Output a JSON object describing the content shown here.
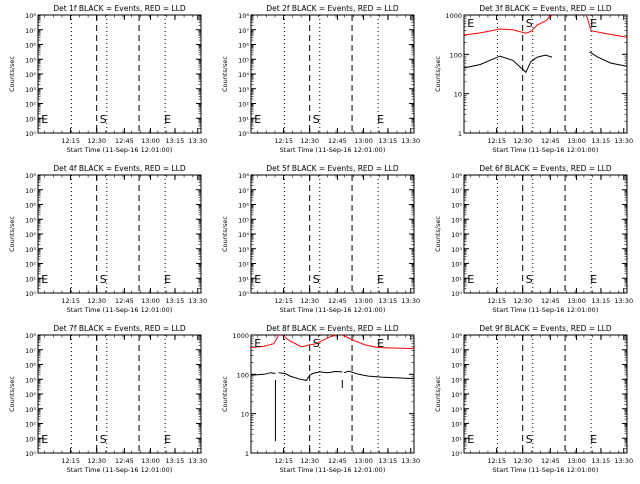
{
  "x_ticks": [
    "12:15",
    "12:30",
    "12:45",
    "13:00",
    "13:15",
    "13:30"
  ],
  "x_label": "Start Time (11-Sep-16 12:01:00)",
  "y_label": "Counts/sec",
  "marker_S": "S",
  "marker_E": "E",
  "colors": {
    "events": "#000000",
    "lld": "#ff0000",
    "axes": "#000000"
  },
  "chart_data": [
    {
      "type": "line",
      "title": "Det 1f BLACK = Events, RED = LLD",
      "y_scale": "log",
      "ylim": [
        1,
        100000000
      ],
      "y_ticks": [
        "10⁰",
        "10¹",
        "10²",
        "10³",
        "10⁴",
        "10⁵",
        "10⁶",
        "10⁷",
        "10⁸"
      ],
      "series": []
    },
    {
      "type": "line",
      "title": "Det 2f BLACK = Events, RED = LLD",
      "y_scale": "log",
      "ylim": [
        1,
        100000000
      ],
      "y_ticks": [
        "10⁰",
        "10¹",
        "10²",
        "10³",
        "10⁴",
        "10⁵",
        "10⁶",
        "10⁷",
        "10⁸"
      ],
      "series": []
    },
    {
      "type": "line",
      "title": "Det 3f BLACK = Events, RED = LLD",
      "y_scale": "log",
      "ylim": [
        1,
        1000
      ],
      "y_ticks": [
        "1",
        "10",
        "100",
        "1000"
      ],
      "series": [
        {
          "color": "red",
          "segments": [
            [
              [
                0,
                310
              ],
              [
                10,
                350
              ],
              [
                22,
                440
              ],
              [
                30,
                420
              ],
              [
                38,
                345
              ],
              [
                41,
                380
              ],
              [
                45,
                560
              ],
              [
                50,
                700
              ],
              [
                54,
                1000
              ]
            ],
            [
              [
                75,
                1000
              ],
              [
                78,
                400
              ],
              [
                88,
                330
              ],
              [
                100,
                270
              ]
            ]
          ]
        },
        {
          "color": "black",
          "segments": [
            [
              [
                0,
                45
              ],
              [
                10,
                55
              ],
              [
                22,
                90
              ],
              [
                30,
                70
              ],
              [
                38,
                35
              ],
              [
                41,
                65
              ],
              [
                45,
                85
              ],
              [
                50,
                95
              ],
              [
                54,
                85
              ]
            ],
            [
              [
                77,
                115
              ],
              [
                82,
                85
              ],
              [
                90,
                60
              ],
              [
                100,
                50
              ]
            ]
          ]
        }
      ]
    },
    {
      "type": "line",
      "title": "Det 4f BLACK = Events, RED = LLD",
      "y_scale": "log",
      "ylim": [
        1,
        100000000
      ],
      "y_ticks": [
        "10⁰",
        "10¹",
        "10²",
        "10³",
        "10⁴",
        "10⁵",
        "10⁶",
        "10⁷",
        "10⁸"
      ],
      "series": []
    },
    {
      "type": "line",
      "title": "Det 5f BLACK = Events, RED = LLD",
      "y_scale": "log",
      "ylim": [
        1,
        100000000
      ],
      "y_ticks": [
        "10⁰",
        "10¹",
        "10²",
        "10³",
        "10⁴",
        "10⁵",
        "10⁶",
        "10⁷",
        "10⁸"
      ],
      "series": []
    },
    {
      "type": "line",
      "title": "Det 6f BLACK = Events, RED = LLD",
      "y_scale": "log",
      "ylim": [
        1,
        100000000
      ],
      "y_ticks": [
        "10⁰",
        "10¹",
        "10²",
        "10³",
        "10⁴",
        "10⁵",
        "10⁶",
        "10⁷",
        "10⁸"
      ],
      "series": []
    },
    {
      "type": "line",
      "title": "Det 7f BLACK = Events, RED = LLD",
      "y_scale": "log",
      "ylim": [
        1,
        100000000
      ],
      "y_ticks": [
        "10⁰",
        "10¹",
        "10²",
        "10³",
        "10⁴",
        "10⁵",
        "10⁶",
        "10⁷",
        "10⁸"
      ],
      "series": []
    },
    {
      "type": "line",
      "title": "Det 8f BLACK = Events, RED = LLD",
      "y_scale": "log",
      "ylim": [
        1,
        1000
      ],
      "y_ticks": [
        "1",
        "10",
        "100",
        "1000"
      ],
      "series": [
        {
          "color": "red",
          "segments": [
            [
              [
                0,
                480
              ],
              [
                8,
                520
              ],
              [
                14,
                600
              ],
              [
                17,
                1000
              ]
            ],
            [
              [
                19,
                1000
              ],
              [
                24,
                700
              ],
              [
                31,
                500
              ],
              [
                36,
                560
              ],
              [
                40,
                600
              ],
              [
                47,
                850
              ],
              [
                52,
                1000
              ]
            ],
            [
              [
                56,
                1000
              ],
              [
                64,
                700
              ],
              [
                70,
                560
              ],
              [
                78,
                480
              ],
              [
                100,
                450
              ]
            ]
          ]
        },
        {
          "color": "black",
          "segments": [
            [
              [
                0,
                95
              ],
              [
                8,
                100
              ],
              [
                12,
                110
              ],
              [
                15,
                105
              ]
            ],
            [
              [
                15,
                2
              ]
            ],
            [
              [
                17,
                110
              ],
              [
                21,
                105
              ],
              [
                24,
                90
              ],
              [
                30,
                75
              ],
              [
                34,
                70
              ],
              [
                36,
                95
              ],
              [
                38,
                105
              ],
              [
                42,
                115
              ],
              [
                47,
                110
              ],
              [
                52,
                118
              ],
              [
                56,
                115
              ]
            ],
            [
              [
                56,
                45
              ]
            ],
            [
              [
                57,
                110
              ],
              [
                60,
                120
              ],
              [
                66,
                100
              ],
              [
                72,
                90
              ],
              [
                80,
                85
              ],
              [
                100,
                78
              ]
            ]
          ]
        }
      ]
    },
    {
      "type": "line",
      "title": "Det 9f BLACK = Events, RED = LLD",
      "y_scale": "log",
      "ylim": [
        1,
        100000000
      ],
      "y_ticks": [
        "10⁰",
        "10¹",
        "10²",
        "10³",
        "10⁴",
        "10⁵",
        "10⁶",
        "10⁷",
        "10⁸"
      ],
      "series": []
    }
  ]
}
